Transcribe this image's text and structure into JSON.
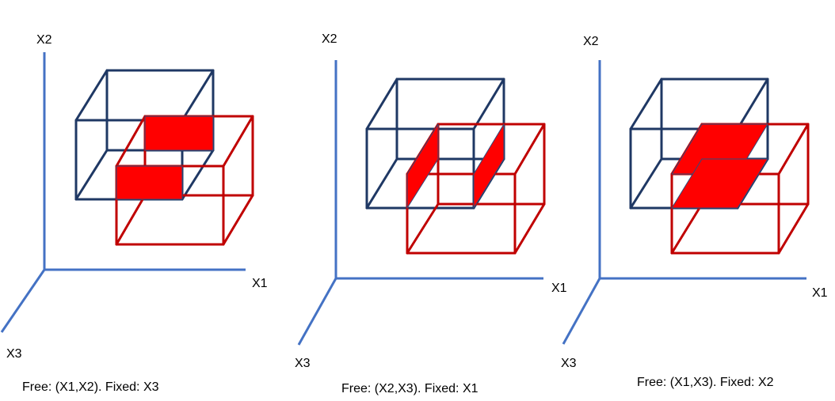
{
  "colors": {
    "axis": "#4472c4",
    "fixed_cube": "#1f3864",
    "moving_cube": "#c00000",
    "overlap_fill": "#ff0000"
  },
  "panels": [
    {
      "axes": {
        "vertical": "X2",
        "horizontal": "X1",
        "depth": "X3"
      },
      "caption": "Free: (X1,X2). Fixed: X3"
    },
    {
      "axes": {
        "vertical": "X2",
        "horizontal": "X1",
        "depth": "X3"
      },
      "caption": "Free: (X2,X3). Fixed: X1"
    },
    {
      "axes": {
        "vertical": "X2",
        "horizontal": "X1",
        "depth": "X3"
      },
      "caption": "Free: (X1,X3). Fixed: X2"
    }
  ]
}
